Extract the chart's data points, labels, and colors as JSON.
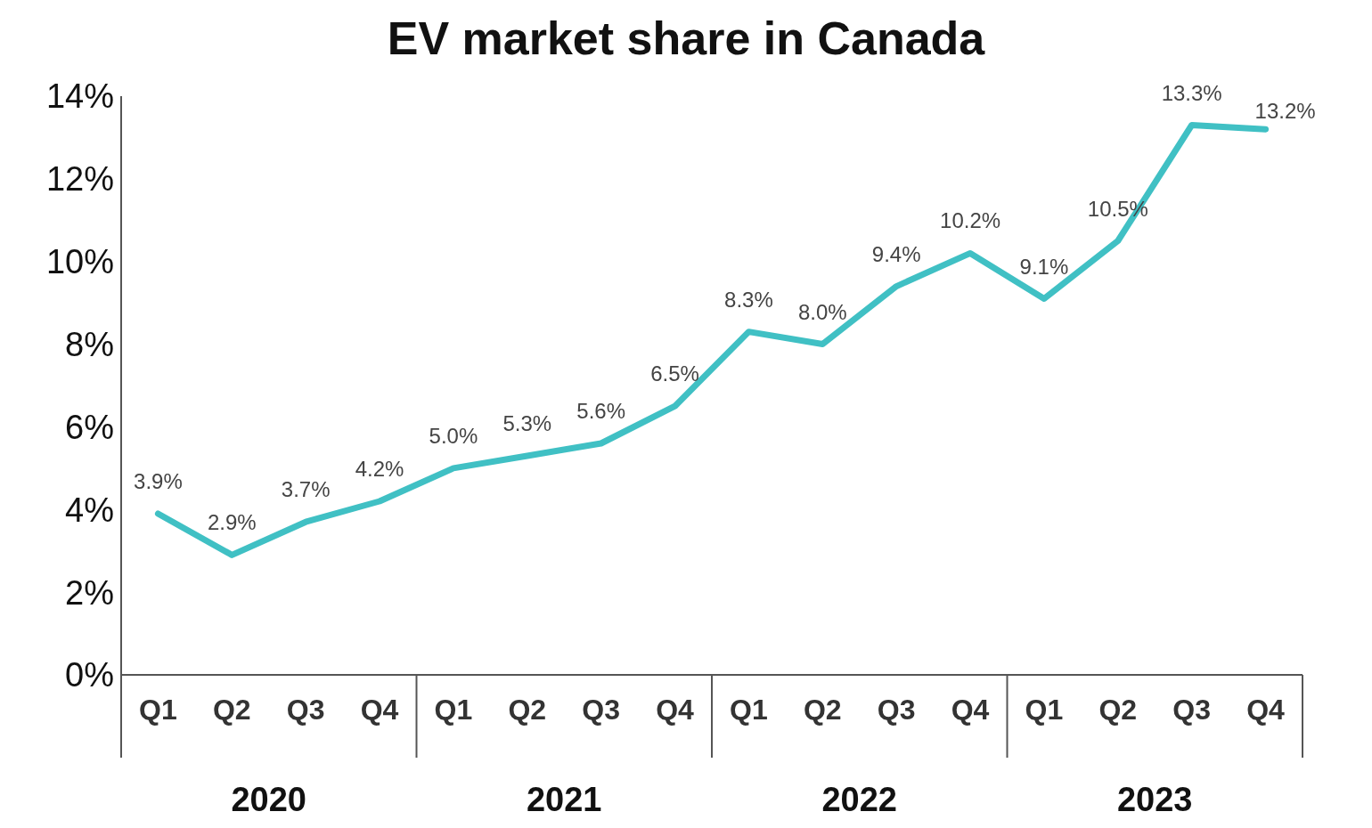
{
  "chart_data": {
    "type": "line",
    "title": "EV market share in Canada",
    "categories": [
      "Q1",
      "Q2",
      "Q3",
      "Q4",
      "Q1",
      "Q2",
      "Q3",
      "Q4",
      "Q1",
      "Q2",
      "Q3",
      "Q4",
      "Q1",
      "Q2",
      "Q3",
      "Q4"
    ],
    "series": [
      {
        "color": "#40c0c4",
        "values": [
          3.9,
          2.9,
          3.7,
          4.2,
          5.0,
          5.3,
          5.6,
          6.5,
          8.3,
          8.0,
          9.4,
          10.2,
          9.1,
          10.5,
          13.3,
          13.2
        ],
        "value_labels": [
          "3.9%",
          "2.9%",
          "3.7%",
          "4.2%",
          "5.0%",
          "5.3%",
          "5.6%",
          "6.5%",
          "8.3%",
          "8.0%",
          "9.4%",
          "10.2%",
          "9.1%",
          "10.5%",
          "13.3%",
          "13.2%"
        ]
      }
    ],
    "annotations": [
      "2020",
      "2021",
      "2022",
      "2023"
    ],
    "ylim": [
      0,
      14
    ],
    "yticks": [
      {
        "value": 0,
        "label": "0%"
      },
      {
        "value": 2,
        "label": "2%"
      },
      {
        "value": 4,
        "label": "4%"
      },
      {
        "value": 6,
        "label": "6%"
      },
      {
        "value": 8,
        "label": "8%"
      },
      {
        "value": 10,
        "label": "10%"
      },
      {
        "value": 12,
        "label": "12%"
      },
      {
        "value": 14,
        "label": "14%"
      }
    ],
    "grid": false,
    "legend": false,
    "marker": "none",
    "line_style": "solid"
  }
}
